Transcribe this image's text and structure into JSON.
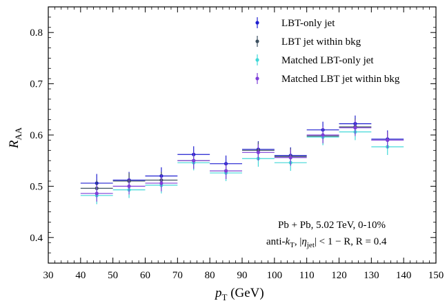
{
  "chart_data": {
    "type": "scatter",
    "xlabel_main": "p",
    "xlabel_sub": "T",
    "xlabel_unit": " (GeV)",
    "ylabel_main": "R",
    "ylabel_sub": "AA",
    "xlim": [
      30,
      150
    ],
    "ylim": [
      0.35,
      0.85
    ],
    "xticks": [
      30,
      40,
      50,
      60,
      70,
      80,
      90,
      100,
      110,
      120,
      130,
      140,
      150
    ],
    "yticks": [
      0.4,
      0.5,
      0.6,
      0.7,
      0.8
    ],
    "ytick_labels": [
      "0.4",
      "0.5",
      "0.6",
      "0.7",
      "0.8"
    ],
    "legend_position": "top-center",
    "bins": [
      [
        40,
        50
      ],
      [
        50,
        60
      ],
      [
        60,
        70
      ],
      [
        70,
        80
      ],
      [
        80,
        90
      ],
      [
        90,
        100
      ],
      [
        100,
        110
      ],
      [
        110,
        120
      ],
      [
        120,
        130
      ],
      [
        130,
        140
      ]
    ],
    "series": [
      {
        "name": "LBT-only jet",
        "color": "#1f1fd0",
        "x": [
          45,
          55,
          65,
          75,
          85,
          95,
          105,
          115,
          125,
          135
        ],
        "values": [
          0.506,
          0.512,
          0.52,
          0.562,
          0.544,
          0.572,
          0.56,
          0.61,
          0.622,
          0.592
        ],
        "errors": [
          0.018,
          0.016,
          0.017,
          0.016,
          0.016,
          0.016,
          0.016,
          0.016,
          0.016,
          0.017
        ]
      },
      {
        "name": "LBT jet within bkg",
        "color": "#3d5060",
        "x": [
          45,
          55,
          65,
          75,
          85,
          95,
          105,
          115,
          125,
          135
        ],
        "values": [
          0.496,
          0.51,
          0.512,
          0.55,
          0.53,
          0.57,
          0.558,
          0.598,
          0.616,
          0.59
        ],
        "errors": [
          0.016,
          0.016,
          0.016,
          0.016,
          0.016,
          0.016,
          0.016,
          0.016,
          0.016,
          0.016
        ]
      },
      {
        "name": "Matched LBT-only jet",
        "color": "#40d8d8",
        "x": [
          45,
          55,
          65,
          75,
          85,
          95,
          105,
          115,
          125,
          135
        ],
        "values": [
          0.482,
          0.493,
          0.502,
          0.546,
          0.526,
          0.554,
          0.546,
          0.596,
          0.606,
          0.577
        ],
        "errors": [
          0.017,
          0.016,
          0.016,
          0.015,
          0.016,
          0.016,
          0.016,
          0.016,
          0.016,
          0.016
        ]
      },
      {
        "name": "Matched LBT jet within bkg",
        "color": "#7e3fd8",
        "x": [
          45,
          55,
          65,
          75,
          85,
          95,
          105,
          115,
          125,
          135
        ],
        "values": [
          0.486,
          0.5,
          0.506,
          0.55,
          0.53,
          0.566,
          0.556,
          0.6,
          0.614,
          0.59
        ],
        "errors": [
          0.016,
          0.016,
          0.016,
          0.016,
          0.016,
          0.016,
          0.016,
          0.016,
          0.016,
          0.016
        ]
      }
    ],
    "annotation_line1": "Pb + Pb, 5.02 TeV, 0-10%",
    "annotation_line2_parts": {
      "anti": "anti-",
      "k": "k",
      "k_sub": "T",
      "sep": ", |",
      "eta": "η",
      "eta_sub": "jet",
      "rest": "| < 1 − R, R = 0.4"
    }
  }
}
